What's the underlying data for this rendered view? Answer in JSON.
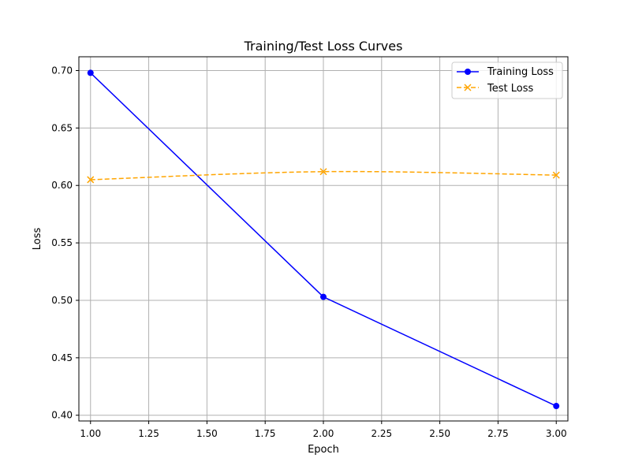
{
  "chart_data": {
    "type": "line",
    "title": "Training/Test Loss Curves",
    "xlabel": "Epoch",
    "ylabel": "Loss",
    "xlim": [
      0.95,
      3.05
    ],
    "ylim": [
      0.395,
      0.712
    ],
    "xticks": [
      1.0,
      1.25,
      1.5,
      1.75,
      2.0,
      2.25,
      2.5,
      2.75,
      3.0
    ],
    "xtick_labels": [
      "1.00",
      "1.25",
      "1.50",
      "1.75",
      "2.00",
      "2.25",
      "2.50",
      "2.75",
      "3.00"
    ],
    "yticks": [
      0.4,
      0.45,
      0.5,
      0.55,
      0.6,
      0.65,
      0.7
    ],
    "ytick_labels": [
      "0.40",
      "0.45",
      "0.50",
      "0.55",
      "0.60",
      "0.65",
      "0.70"
    ],
    "grid": true,
    "legend_position": "top-right",
    "x": [
      1,
      2,
      3
    ],
    "series": [
      {
        "name": "Training Loss",
        "values": [
          0.698,
          0.503,
          0.408
        ],
        "color": "#0000ff",
        "marker": "circle",
        "line_style": "solid"
      },
      {
        "name": "Test Loss",
        "values": [
          0.605,
          0.612,
          0.609
        ],
        "color": "#ffa500",
        "marker": "x",
        "line_style": "dashed",
        "smooth": true
      }
    ]
  }
}
